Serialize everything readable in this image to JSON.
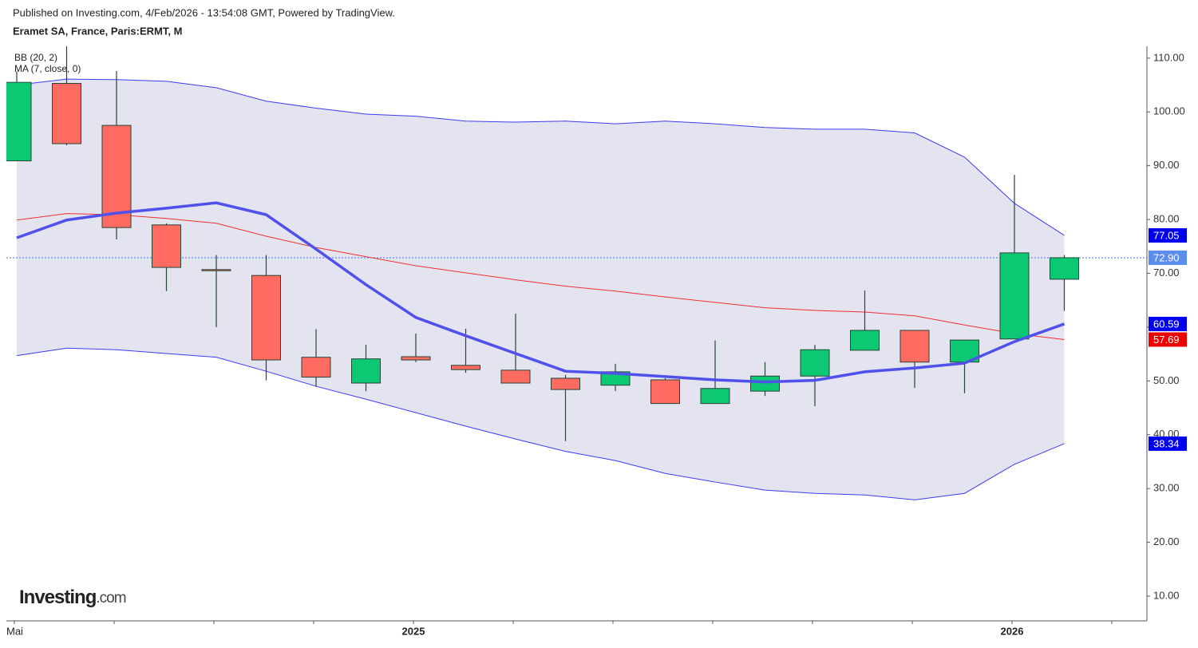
{
  "chart_data": {
    "type": "candlestick",
    "published": "Published on Investing.com, 4/Feb/2026 - 13:54:08 GMT, Powered by TradingView.",
    "title": "Eramet SA, France, Paris:ERMT, M",
    "indicator_labels": [
      "BB (20, 2)",
      "MA (7, close, 0)"
    ],
    "logo": [
      "Investing",
      ".com"
    ],
    "categories": [
      "Mai",
      null,
      null,
      null,
      null,
      null,
      null,
      null,
      "2025",
      null,
      null,
      null,
      null,
      null,
      null,
      null,
      null,
      null,
      null,
      null,
      "2026",
      null
    ],
    "open": [
      90.9,
      105.3,
      97.5,
      79.0,
      70.7,
      69.6,
      54.4,
      49.6,
      54.5,
      52.9,
      52.0,
      50.5,
      49.2,
      50.2,
      45.8,
      48.1,
      50.9,
      55.7,
      59.4,
      53.5,
      57.8,
      68.9
    ],
    "high": [
      107.5,
      112.2,
      107.6,
      79.3,
      73.4,
      73.4,
      59.6,
      56.7,
      58.8,
      59.7,
      62.5,
      51.1,
      53.2,
      50.5,
      57.5,
      53.5,
      56.7,
      66.8,
      59.4,
      57.6,
      88.3,
      73.4
    ],
    "low": [
      90.9,
      93.8,
      76.3,
      66.7,
      60.0,
      50.1,
      48.9,
      48.1,
      53.5,
      51.5,
      49.6,
      38.8,
      48.1,
      45.8,
      45.8,
      47.2,
      45.3,
      55.7,
      48.7,
      47.7,
      57.8,
      63.0
    ],
    "close": [
      105.5,
      94.1,
      78.5,
      71.1,
      70.6,
      53.9,
      50.7,
      54.1,
      53.9,
      52.1,
      49.6,
      48.4,
      51.7,
      45.8,
      48.6,
      50.9,
      55.8,
      59.4,
      53.5,
      57.6,
      73.8,
      72.9
    ],
    "up_color": "#0cc872",
    "down_color": "#ff6a61",
    "series": [
      {
        "name": "BB upper",
        "role": "bb-upper",
        "color": "#3c3cf0",
        "values": [
          105.0,
          106.1,
          106.0,
          105.7,
          104.5,
          102.0,
          100.7,
          99.6,
          99.2,
          98.3,
          98.1,
          98.3,
          97.8,
          98.3,
          97.8,
          97.1,
          96.8,
          96.8,
          96.1,
          91.6,
          83.0,
          77.05
        ]
      },
      {
        "name": "BB basis",
        "role": "bb-basis",
        "color": "#ee3030",
        "values": [
          79.9,
          81.1,
          80.9,
          80.2,
          79.3,
          76.9,
          74.8,
          73.1,
          71.4,
          70.1,
          68.8,
          67.6,
          66.7,
          65.6,
          64.6,
          63.6,
          63.1,
          62.8,
          62.1,
          60.4,
          58.8,
          57.69
        ]
      },
      {
        "name": "BB lower",
        "role": "bb-lower",
        "color": "#3c3cf0",
        "values": [
          54.7,
          56.1,
          55.8,
          55.1,
          54.4,
          51.8,
          49.0,
          46.6,
          44.1,
          41.6,
          39.2,
          36.9,
          35.2,
          32.8,
          31.2,
          29.7,
          29.1,
          28.8,
          27.9,
          29.1,
          34.5,
          38.34
        ]
      },
      {
        "name": "MA",
        "role": "ma",
        "color": "#5050ea",
        "values": [
          76.6,
          79.9,
          81.2,
          82.1,
          83.1,
          80.9,
          74.5,
          67.9,
          61.8,
          58.4,
          55.1,
          51.8,
          51.4,
          50.8,
          50.2,
          49.8,
          50.1,
          51.7,
          52.4,
          53.3,
          57.3,
          60.59
        ]
      }
    ],
    "band_fill": "#e4e4f1",
    "price_labels": [
      {
        "value": 77.05,
        "label": "77.05",
        "color": "#0000ee"
      },
      {
        "value": 72.9,
        "label": "72.90",
        "color": "#5b8def"
      },
      {
        "value": 60.59,
        "label": "60.59",
        "color": "#0000ee"
      },
      {
        "value": 57.69,
        "label": "57.69",
        "color": "#ee0000"
      },
      {
        "value": 38.34,
        "label": "38.34",
        "color": "#0000ee"
      }
    ],
    "last_price": 72.9,
    "ylim": [
      5.4,
      112.2
    ],
    "yticks": [
      {
        "value": 10,
        "label": "10.00"
      },
      {
        "value": 20,
        "label": "20.00"
      },
      {
        "value": 30,
        "label": "30.00"
      },
      {
        "value": 40,
        "label": "40.00"
      },
      {
        "value": 50,
        "label": "50.00"
      },
      {
        "value": 60,
        "label": "60.00"
      },
      {
        "value": 70,
        "label": "70.00"
      },
      {
        "value": 80,
        "label": "80.00"
      },
      {
        "value": 90,
        "label": "90.00"
      },
      {
        "value": 100,
        "label": "100.00"
      },
      {
        "value": 110,
        "label": "110.00"
      }
    ]
  }
}
